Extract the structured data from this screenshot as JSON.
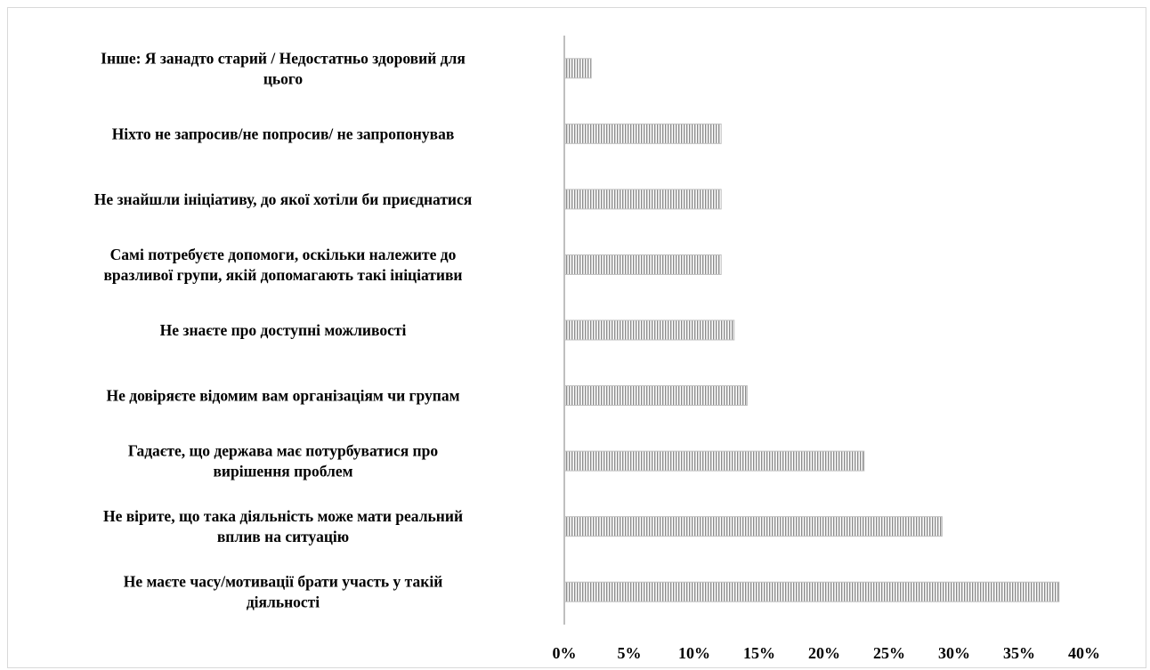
{
  "chart_data": {
    "type": "bar",
    "orientation": "horizontal",
    "categories": [
      [
        "Інше: Я занадто старий / Недостатньо здоровий для",
        "цього"
      ],
      [
        "Ніхто не запросив/не попросив/ не запропонував"
      ],
      [
        "Не знайшли ініціативу, до якої хотіли би приєднатися"
      ],
      [
        "Самі потребуєте допомоги, оскільки належите до",
        "вразливої групи, якій допомагають такі ініціативи"
      ],
      [
        "Не знаєте про доступні можливості"
      ],
      [
        "Не довіряєте відомим вам організаціям чи групам"
      ],
      [
        "Гадаєте, що держава має потурбуватися про",
        "вирішення проблем"
      ],
      [
        "Не вірите, що така діяльність може мати реальний",
        "вплив на ситуацію"
      ],
      [
        "Не маєте часу/мотивації брати участь у такій",
        "діяльності"
      ]
    ],
    "values": [
      2,
      12,
      12,
      12,
      13,
      14,
      23,
      29,
      38
    ],
    "xlim": [
      0,
      40
    ],
    "xticks": [
      "0%",
      "5%",
      "10%",
      "15%",
      "20%",
      "25%",
      "30%",
      "35%",
      "40%"
    ],
    "title": "",
    "xlabel": "",
    "ylabel": "",
    "grid": false,
    "legend": "none",
    "bar_color": "#bfbfbf",
    "bar_stripe_color": "#8c8c8c",
    "axis_color": "#bfbfbf"
  }
}
